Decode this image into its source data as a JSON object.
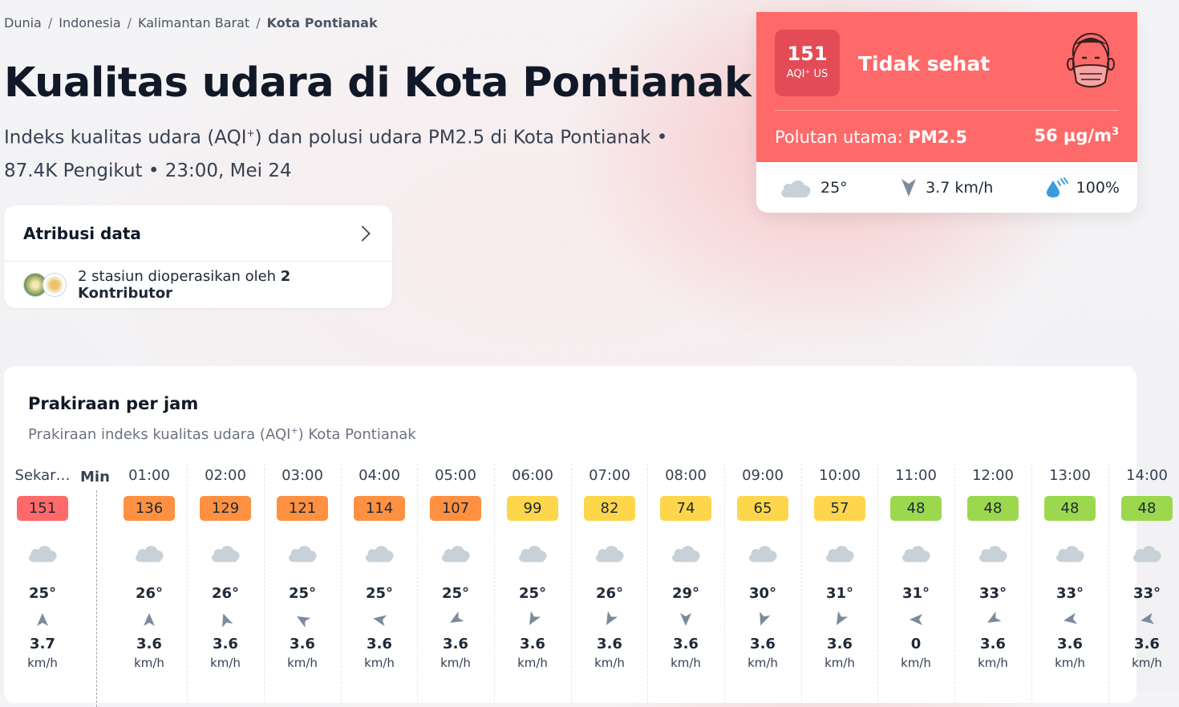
{
  "breadcrumb": [
    {
      "label": "Dunia"
    },
    {
      "label": "Indonesia"
    },
    {
      "label": "Kalimantan Barat"
    },
    {
      "label": "Kota Pontianak"
    }
  ],
  "header": {
    "title": "Kualitas udara di Kota Pontianak",
    "subtitle_pre": "Indeks kualitas udara (AQI",
    "subtitle_sup": "+",
    "subtitle_post": ") dan polusi udara PM2.5 di Kota Pontianak • 87.4K Pengikut • 23:00, Mei 24"
  },
  "attribution": {
    "title": "Atribusi data",
    "text_pre": "2 stasiun dioperasikan oleh ",
    "text_bold": "2 Kontributor"
  },
  "aqi_card": {
    "value": "151",
    "unit": "AQI⁺ US",
    "status": "Tidak sehat",
    "pollutant_label": "Polutan utama: ",
    "pollutant": "PM2.5",
    "concentration": "56  µg/m",
    "concentration_sup": "3",
    "temperature": "25°",
    "wind": "3.7 km/h",
    "humidity": "100%",
    "status_color": "#fe6a69",
    "badge_color": "#e34b56"
  },
  "forecast": {
    "title": "Prakiraan per jam",
    "subtitle_pre": "Prakiraan indeks kualitas udara (AQI",
    "subtitle_sup": "+",
    "subtitle_post": ") Kota Pontianak",
    "min_label": "Min",
    "wind_unit": "km/h",
    "hours": [
      {
        "time": "Sekar…",
        "aqi": "151",
        "color": "#fe6a69",
        "temp": "25°",
        "wind": "3.7",
        "dir": 180
      },
      {
        "time": "01:00",
        "aqi": "136",
        "color": "#fd9141",
        "temp": "26°",
        "wind": "3.6",
        "dir": 180
      },
      {
        "time": "02:00",
        "aqi": "129",
        "color": "#fd9141",
        "temp": "26°",
        "wind": "3.6",
        "dir": 160
      },
      {
        "time": "03:00",
        "aqi": "121",
        "color": "#fd9141",
        "temp": "25°",
        "wind": "3.6",
        "dir": 120
      },
      {
        "time": "04:00",
        "aqi": "114",
        "color": "#fd9141",
        "temp": "25°",
        "wind": "3.6",
        "dir": 100
      },
      {
        "time": "05:00",
        "aqi": "107",
        "color": "#fd9141",
        "temp": "25°",
        "wind": "3.6",
        "dir": 60
      },
      {
        "time": "06:00",
        "aqi": "99",
        "color": "#fdd64b",
        "temp": "25°",
        "wind": "3.6",
        "dir": 30
      },
      {
        "time": "07:00",
        "aqi": "82",
        "color": "#fdd64b",
        "temp": "26°",
        "wind": "3.6",
        "dir": 30
      },
      {
        "time": "08:00",
        "aqi": "74",
        "color": "#fdd64b",
        "temp": "29°",
        "wind": "3.6",
        "dir": 0
      },
      {
        "time": "09:00",
        "aqi": "65",
        "color": "#fdd64b",
        "temp": "30°",
        "wind": "3.6",
        "dir": 20
      },
      {
        "time": "10:00",
        "aqi": "57",
        "color": "#fdd64b",
        "temp": "31°",
        "wind": "3.6",
        "dir": 30
      },
      {
        "time": "11:00",
        "aqi": "48",
        "color": "#9cd84e",
        "temp": "31°",
        "wind": "0",
        "dir": 90
      },
      {
        "time": "12:00",
        "aqi": "48",
        "color": "#9cd84e",
        "temp": "33°",
        "wind": "3.6",
        "dir": 60
      },
      {
        "time": "13:00",
        "aqi": "48",
        "color": "#9cd84e",
        "temp": "33°",
        "wind": "3.6",
        "dir": 80
      },
      {
        "time": "14:00",
        "aqi": "48",
        "color": "#9cd84e",
        "temp": "33°",
        "wind": "3.6",
        "dir": 80
      }
    ]
  }
}
